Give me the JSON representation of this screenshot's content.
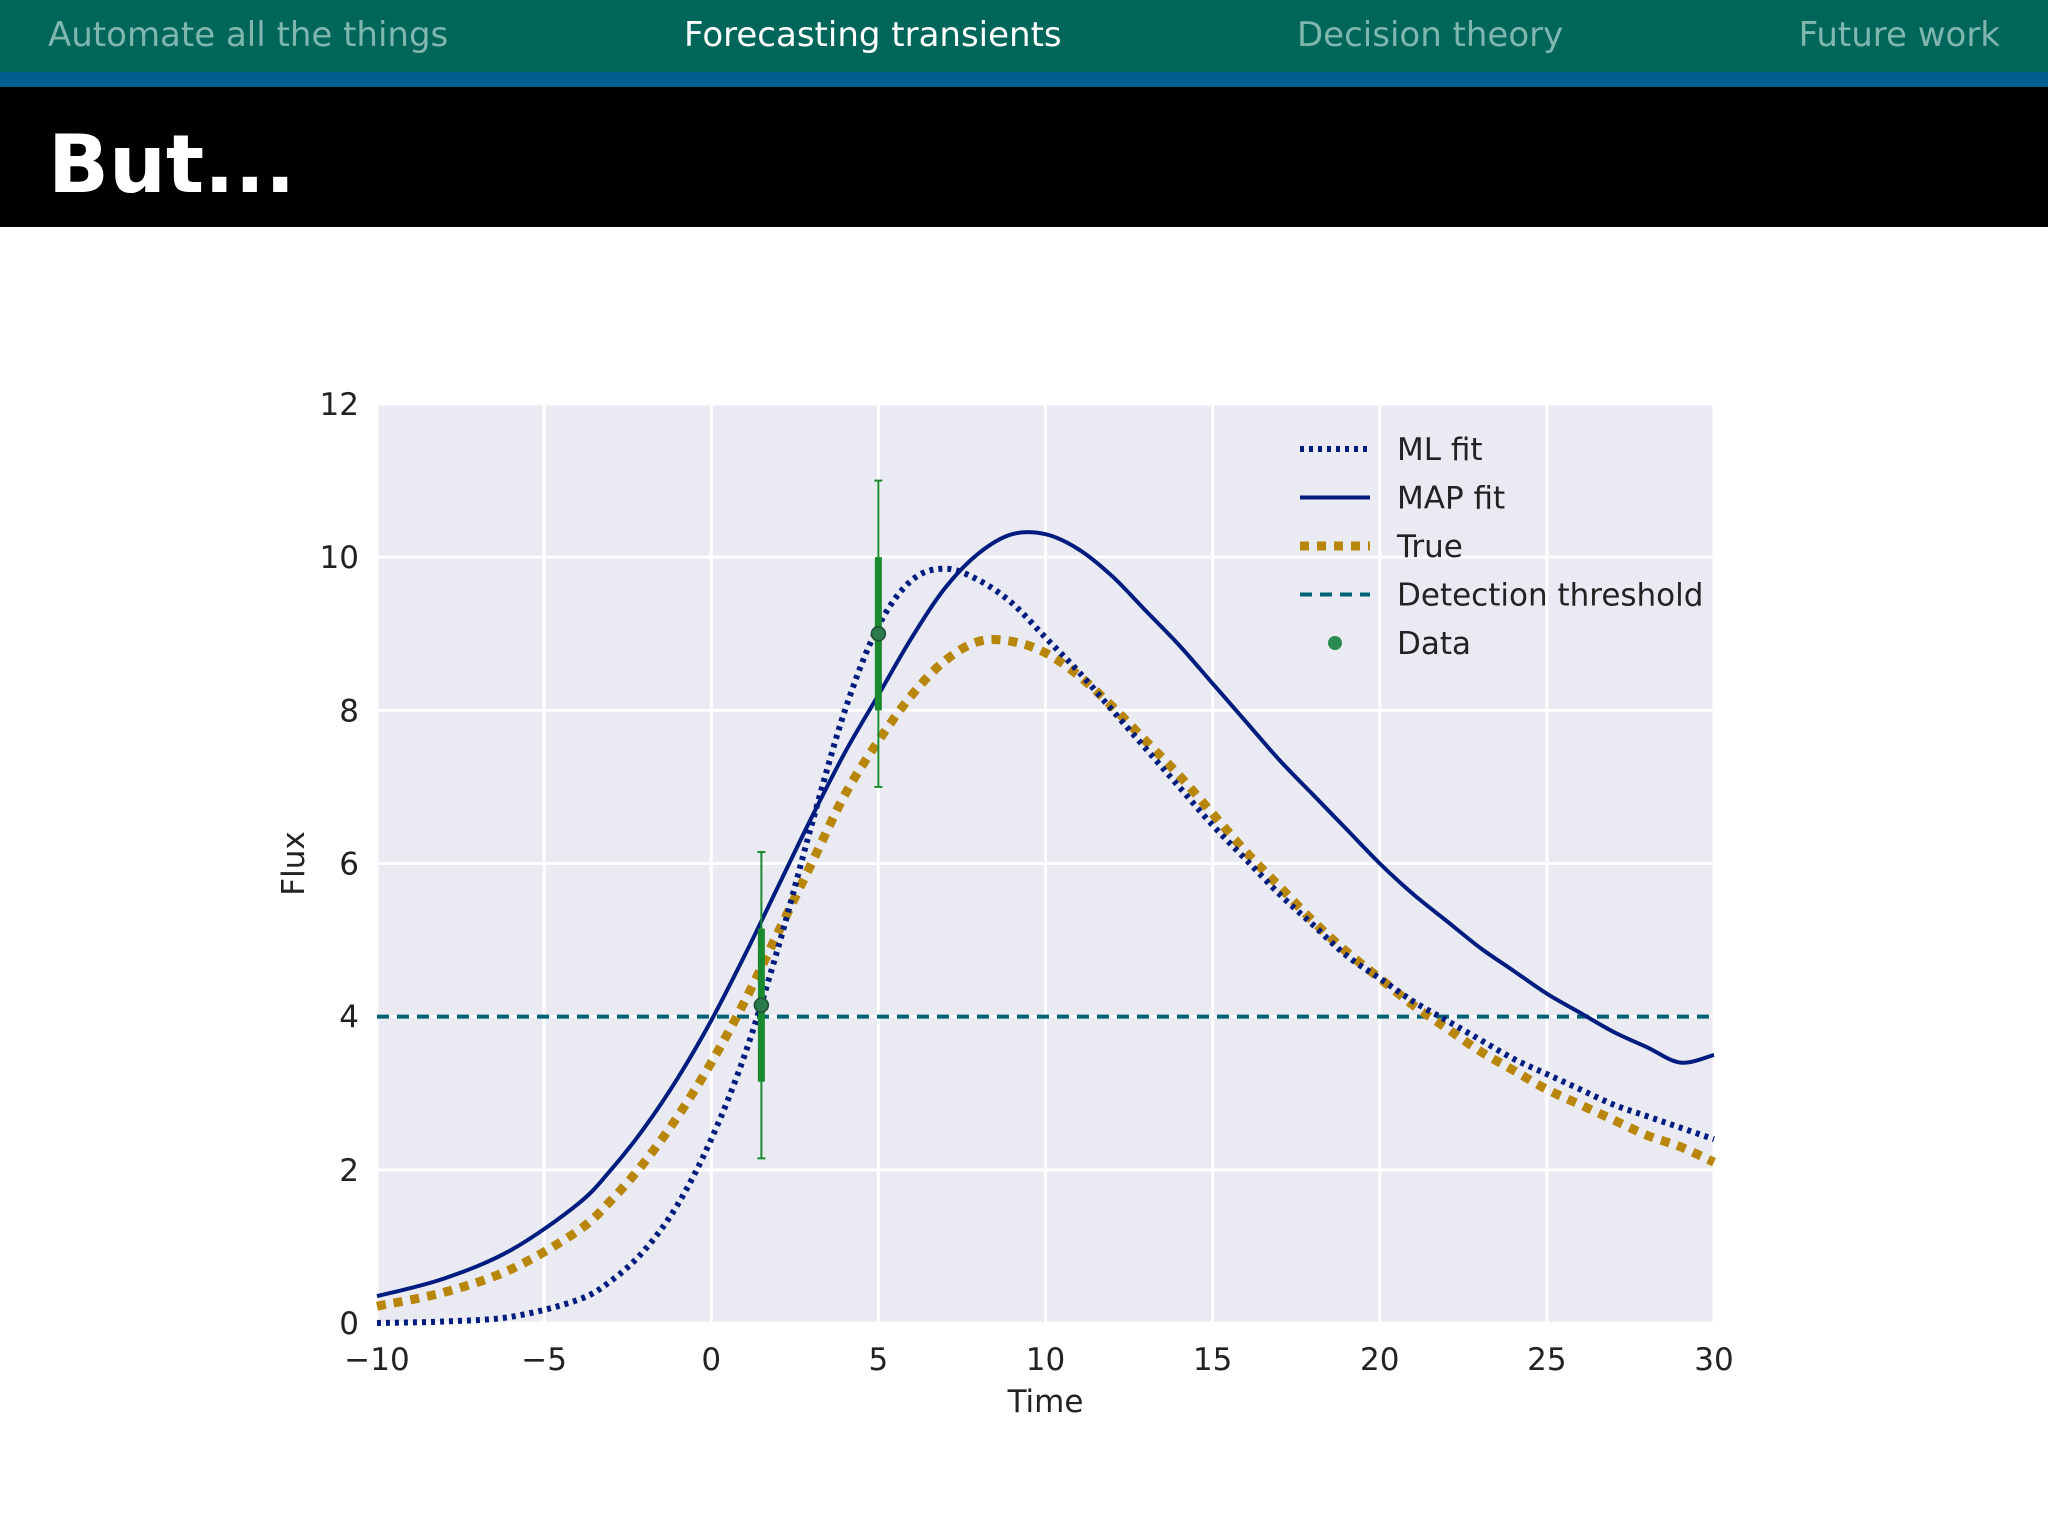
{
  "nav": {
    "items": [
      {
        "label": "Automate all the things",
        "active": false
      },
      {
        "label": "Forecasting transients",
        "active": true
      },
      {
        "label": "Decision theory",
        "active": false
      },
      {
        "label": "Future work",
        "active": false
      }
    ]
  },
  "slide": {
    "title": "But..."
  },
  "colors": {
    "nav_bg": "#00665a",
    "nav_stripe": "#005f8c",
    "plot_bg": "#eaeaf2",
    "ml_fit": "#001c7f",
    "map_fit": "#001c7f",
    "true": "#b8860b",
    "threshold": "#006374",
    "data": "#1a8a2e"
  },
  "chart_data": {
    "type": "line",
    "title": "",
    "xlabel": "Time",
    "ylabel": "Flux",
    "xlim": [
      -10,
      30
    ],
    "ylim": [
      0,
      12
    ],
    "xticks": [
      -10,
      -5,
      0,
      5,
      10,
      15,
      20,
      25,
      30
    ],
    "xtick_labels": [
      "−10",
      "−5",
      "0",
      "5",
      "10",
      "15",
      "20",
      "25",
      "30"
    ],
    "yticks": [
      0,
      2,
      4,
      6,
      8,
      10,
      12
    ],
    "ytick_labels": [
      "0",
      "2",
      "4",
      "6",
      "8",
      "10",
      "12"
    ],
    "grid": true,
    "legend_position": "top-right",
    "series": [
      {
        "name": "ML fit",
        "style": "dotted",
        "x": [
          -10,
          -8,
          -6,
          -4,
          -3,
          -2,
          -1,
          0,
          1,
          2,
          3,
          4,
          5,
          6,
          7,
          8,
          9,
          10,
          11,
          12,
          13,
          14,
          15,
          16,
          17,
          18,
          19,
          20,
          21,
          22,
          23,
          24,
          25,
          26,
          27,
          28,
          29,
          30
        ],
        "y": [
          0.0,
          0.02,
          0.08,
          0.3,
          0.55,
          0.95,
          1.55,
          2.4,
          3.5,
          4.9,
          6.5,
          8.0,
          9.1,
          9.7,
          9.85,
          9.7,
          9.4,
          8.95,
          8.5,
          8.0,
          7.5,
          7.0,
          6.5,
          6.05,
          5.6,
          5.2,
          4.8,
          4.5,
          4.2,
          3.95,
          3.7,
          3.45,
          3.25,
          3.05,
          2.85,
          2.7,
          2.55,
          2.4
        ]
      },
      {
        "name": "MAP fit",
        "style": "solid",
        "x": [
          -10,
          -8,
          -6,
          -4,
          -3,
          -2,
          -1,
          0,
          1,
          2,
          3,
          4,
          5,
          6,
          7,
          8,
          9,
          10,
          11,
          12,
          13,
          14,
          15,
          16,
          17,
          18,
          19,
          20,
          21,
          22,
          23,
          24,
          25,
          26,
          27,
          28,
          29,
          30
        ],
        "y": [
          0.35,
          0.58,
          0.95,
          1.55,
          2.0,
          2.55,
          3.2,
          3.95,
          4.8,
          5.7,
          6.6,
          7.45,
          8.2,
          8.95,
          9.6,
          10.05,
          10.3,
          10.3,
          10.1,
          9.75,
          9.3,
          8.85,
          8.35,
          7.85,
          7.35,
          6.9,
          6.45,
          6.0,
          5.6,
          5.25,
          4.9,
          4.6,
          4.3,
          4.05,
          3.8,
          3.6,
          3.4,
          3.5
        ]
      },
      {
        "name": "True",
        "style": "dashed-thick",
        "x": [
          -10,
          -8,
          -6,
          -4,
          -3,
          -2,
          -1,
          0,
          1,
          2,
          3,
          4,
          5,
          6,
          7,
          8,
          9,
          10,
          11,
          12,
          13,
          14,
          15,
          16,
          17,
          18,
          19,
          20,
          21,
          22,
          23,
          24,
          25,
          26,
          27,
          28,
          29,
          30
        ],
        "y": [
          0.22,
          0.4,
          0.7,
          1.2,
          1.6,
          2.1,
          2.7,
          3.4,
          4.2,
          5.1,
          6.0,
          6.9,
          7.6,
          8.2,
          8.65,
          8.9,
          8.9,
          8.75,
          8.45,
          8.05,
          7.6,
          7.15,
          6.65,
          6.15,
          5.7,
          5.25,
          4.85,
          4.5,
          4.15,
          3.85,
          3.55,
          3.3,
          3.05,
          2.85,
          2.65,
          2.45,
          2.3,
          2.1
        ]
      },
      {
        "name": "Detection threshold",
        "style": "dashed",
        "x": [
          -10,
          30
        ],
        "y": [
          4,
          4
        ]
      }
    ],
    "data_points": {
      "name": "Data",
      "x": [
        1.5,
        5.0
      ],
      "y": [
        4.15,
        9.0
      ],
      "err_outer": [
        2.0,
        2.0
      ],
      "err_inner": [
        1.0,
        1.0
      ]
    }
  }
}
